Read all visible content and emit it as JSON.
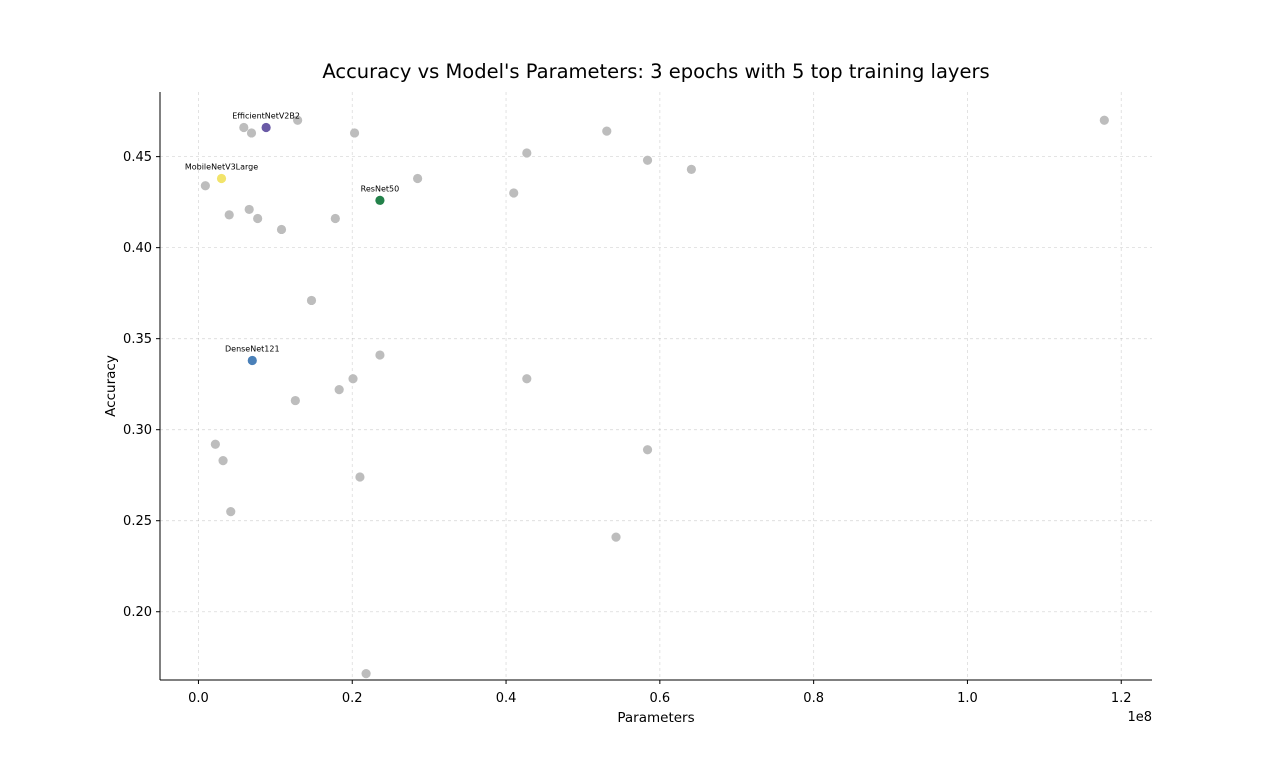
{
  "chart_data": {
    "type": "scatter",
    "title": "Accuracy vs Model's Parameters: 3 epochs with 5 top training layers",
    "xlabel": "Parameters",
    "ylabel": "Accuracy",
    "x_offset_label": "1e8",
    "xlim": [
      -5000000,
      124000000
    ],
    "ylim": [
      0.1625,
      0.4855
    ],
    "x_ticks": [
      0,
      20000000,
      40000000,
      60000000,
      80000000,
      100000000,
      120000000
    ],
    "x_tick_labels": [
      "0.0",
      "0.2",
      "0.4",
      "0.6",
      "0.8",
      "1.0",
      "1.2"
    ],
    "y_ticks": [
      0.2,
      0.25,
      0.3,
      0.35,
      0.4,
      0.45
    ],
    "y_tick_labels": [
      "0.20",
      "0.25",
      "0.30",
      "0.35",
      "0.40",
      "0.45"
    ],
    "grid": true,
    "default_color": "#bdbdbd",
    "points": [
      {
        "x": 5900000,
        "y": 0.466
      },
      {
        "x": 6900000,
        "y": 0.463
      },
      {
        "x": 12900000,
        "y": 0.47
      },
      {
        "x": 20300000,
        "y": 0.463
      },
      {
        "x": 53100000,
        "y": 0.464
      },
      {
        "x": 117800000,
        "y": 0.47
      },
      {
        "x": 42700000,
        "y": 0.452
      },
      {
        "x": 58400000,
        "y": 0.448
      },
      {
        "x": 64100000,
        "y": 0.443
      },
      {
        "x": 900000,
        "y": 0.434
      },
      {
        "x": 28500000,
        "y": 0.438
      },
      {
        "x": 41000000,
        "y": 0.43
      },
      {
        "x": 6600000,
        "y": 0.421
      },
      {
        "x": 4000000,
        "y": 0.418
      },
      {
        "x": 7700000,
        "y": 0.416
      },
      {
        "x": 17800000,
        "y": 0.416
      },
      {
        "x": 10800000,
        "y": 0.41
      },
      {
        "x": 14700000,
        "y": 0.371
      },
      {
        "x": 23600000,
        "y": 0.341
      },
      {
        "x": 20100000,
        "y": 0.328
      },
      {
        "x": 42700000,
        "y": 0.328
      },
      {
        "x": 18300000,
        "y": 0.322
      },
      {
        "x": 12600000,
        "y": 0.316
      },
      {
        "x": 2200000,
        "y": 0.292
      },
      {
        "x": 58400000,
        "y": 0.289
      },
      {
        "x": 3200000,
        "y": 0.283
      },
      {
        "x": 21000000,
        "y": 0.274
      },
      {
        "x": 4200000,
        "y": 0.255
      },
      {
        "x": 54300000,
        "y": 0.241
      },
      {
        "x": 21800000,
        "y": 0.166
      }
    ],
    "highlighted": [
      {
        "name": "EfficientNetV2B2",
        "x": 8800000,
        "y": 0.466,
        "color": "#6a5aa6"
      },
      {
        "name": "MobileNetV3Large",
        "x": 3000000,
        "y": 0.438,
        "color": "#f2e46b"
      },
      {
        "name": "ResNet50",
        "x": 23600000,
        "y": 0.426,
        "color": "#23814a"
      },
      {
        "name": "DenseNet121",
        "x": 7000000,
        "y": 0.338,
        "color": "#4a80b8"
      }
    ]
  }
}
